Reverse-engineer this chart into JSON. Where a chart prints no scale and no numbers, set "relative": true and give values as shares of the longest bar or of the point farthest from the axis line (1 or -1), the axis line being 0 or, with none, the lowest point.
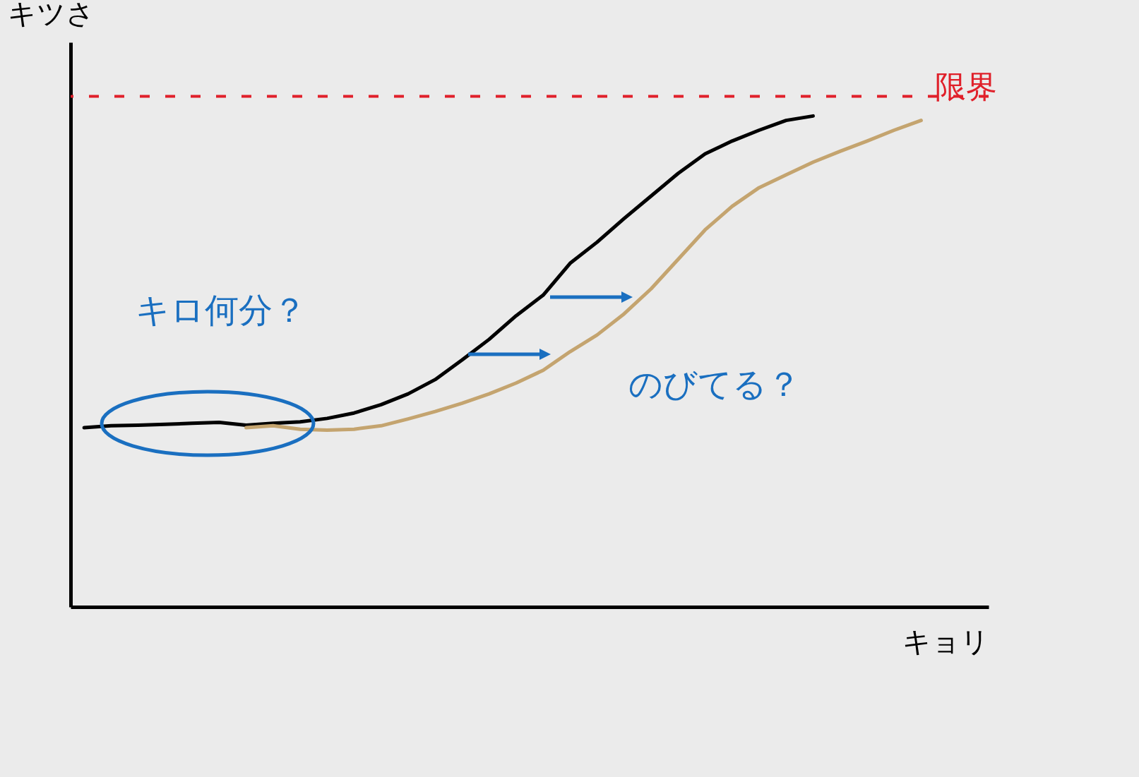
{
  "chart_data": {
    "type": "line",
    "relative": true,
    "xlabel": "キョリ",
    "ylabel": "キツさ",
    "categories": [
      null,
      null,
      null,
      null,
      null,
      null,
      null,
      null,
      null,
      null,
      null,
      null,
      null,
      null,
      null,
      null,
      null,
      null,
      null,
      null,
      null,
      null,
      null,
      null,
      null,
      null,
      null,
      null,
      null,
      null,
      null,
      null
    ],
    "series": [
      {
        "color": "#000000",
        "values": [
          0.365,
          0.369,
          0.37,
          0.372,
          0.374,
          0.376,
          0.37,
          0.374,
          0.377,
          0.384,
          0.395,
          0.412,
          0.434,
          0.463,
          0.503,
          0.545,
          0.593,
          0.635,
          0.7,
          0.743,
          0.791,
          0.837,
          0.883,
          0.923,
          0.949,
          0.971,
          0.991,
          1,
          null,
          null,
          null,
          null
        ]
      },
      {
        "color": "#c4a46f",
        "values": [
          null,
          null,
          null,
          null,
          null,
          null,
          0.365,
          0.369,
          0.362,
          0.36,
          0.362,
          0.369,
          0.383,
          0.398,
          0.415,
          0.434,
          0.456,
          0.482,
          0.52,
          0.554,
          0.597,
          0.648,
          0.708,
          0.768,
          0.816,
          0.854,
          0.88,
          0.906,
          0.928,
          0.949,
          0.971,
          0.991
        ]
      }
    ],
    "ref_lines": [
      {
        "axis": "y",
        "value": 1.04,
        "label": "限界",
        "color": "#e0202a",
        "line_style": "dashed"
      }
    ],
    "annotations": [
      "キロ何分？",
      "のびてる？"
    ]
  }
}
